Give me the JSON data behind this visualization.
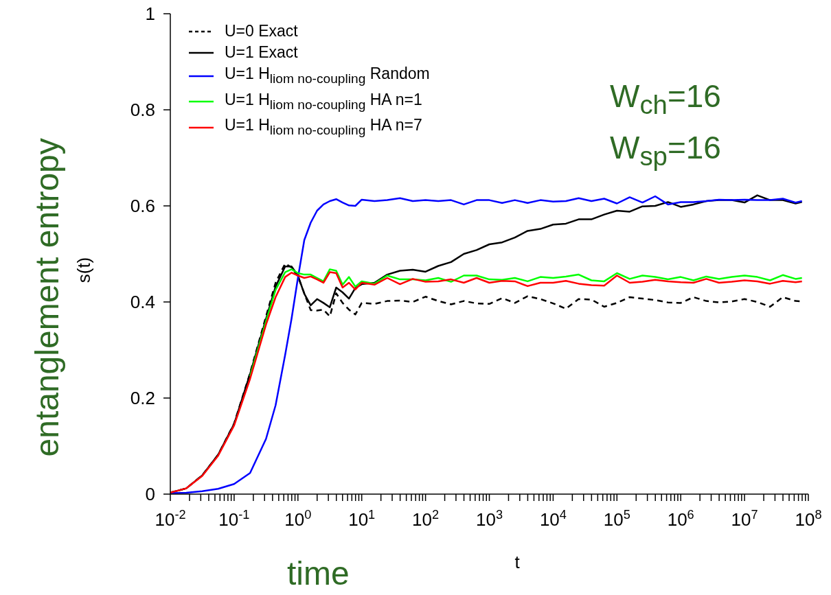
{
  "chart_data": {
    "type": "line",
    "xlabel": "t",
    "ylabel": "s(t)",
    "log": "x",
    "xlim": [
      0.01,
      100000000.0
    ],
    "ylim": [
      0,
      1
    ],
    "xticks": [
      {
        "value": 0.01,
        "label": "10$^{-2}$"
      },
      {
        "value": 0.1,
        "label": "10$^{-1}$"
      },
      {
        "value": 1,
        "label": "10$^{0}$"
      },
      {
        "value": 10,
        "label": "10$^{1}$"
      },
      {
        "value": 100,
        "label": "10$^{2}$"
      },
      {
        "value": 1000,
        "label": "10$^{3}$"
      },
      {
        "value": 10000.0,
        "label": "10$^{4}$"
      },
      {
        "value": 100000.0,
        "label": "10$^{5}$"
      },
      {
        "value": 1000000.0,
        "label": "10$^{6}$"
      },
      {
        "value": 10000000.0,
        "label": "10$^{7}$"
      },
      {
        "value": 100000000.0,
        "label": "10$^{8}$"
      },
      {
        "value": 0.02,
        "label": null
      },
      {
        "value": 0.03,
        "label": null
      },
      {
        "value": 0.04,
        "label": null
      },
      {
        "value": 0.05,
        "label": null
      },
      {
        "value": 0.06,
        "label": null
      },
      {
        "value": 0.07,
        "label": null
      },
      {
        "value": 0.08,
        "label": null
      },
      {
        "value": 0.09,
        "label": null
      },
      {
        "value": 0.2,
        "label": null
      },
      {
        "value": 0.3,
        "label": null
      },
      {
        "value": 0.4,
        "label": null
      },
      {
        "value": 0.5,
        "label": null
      },
      {
        "value": 0.6,
        "label": null
      },
      {
        "value": 0.7,
        "label": null
      },
      {
        "value": 0.8,
        "label": null
      },
      {
        "value": 0.9,
        "label": null
      },
      {
        "value": 2,
        "label": null
      },
      {
        "value": 3,
        "label": null
      },
      {
        "value": 4,
        "label": null
      },
      {
        "value": 5,
        "label": null
      },
      {
        "value": 6,
        "label": null
      },
      {
        "value": 7,
        "label": null
      },
      {
        "value": 8,
        "label": null
      },
      {
        "value": 9,
        "label": null
      },
      {
        "value": 20,
        "label": null
      },
      {
        "value": 30,
        "label": null
      },
      {
        "value": 40,
        "label": null
      },
      {
        "value": 50,
        "label": null
      },
      {
        "value": 60,
        "label": null
      },
      {
        "value": 70,
        "label": null
      },
      {
        "value": 80,
        "label": null
      },
      {
        "value": 90,
        "label": null
      },
      {
        "value": 200,
        "label": null
      },
      {
        "value": 300,
        "label": null
      },
      {
        "value": 400,
        "label": null
      },
      {
        "value": 500,
        "label": null
      },
      {
        "value": 600,
        "label": null
      },
      {
        "value": 700,
        "label": null
      },
      {
        "value": 800,
        "label": null
      },
      {
        "value": 900,
        "label": null
      },
      {
        "value": 2000.0,
        "label": null
      },
      {
        "value": 3000.0,
        "label": null
      },
      {
        "value": 4000.0,
        "label": null
      },
      {
        "value": 5000.0,
        "label": null
      },
      {
        "value": 6000.0,
        "label": null
      },
      {
        "value": 7000.0,
        "label": null
      },
      {
        "value": 8000.0,
        "label": null
      },
      {
        "value": 9000.0,
        "label": null
      },
      {
        "value": 20000.0,
        "label": null
      },
      {
        "value": 30000.0,
        "label": null
      },
      {
        "value": 40000.0,
        "label": null
      },
      {
        "value": 50000.0,
        "label": null
      },
      {
        "value": 60000.0,
        "label": null
      },
      {
        "value": 70000.0,
        "label": null
      },
      {
        "value": 80000.0,
        "label": null
      },
      {
        "value": 90000.0,
        "label": null
      },
      {
        "value": 200000.0,
        "label": null
      },
      {
        "value": 300000.0,
        "label": null
      },
      {
        "value": 400000.0,
        "label": null
      },
      {
        "value": 500000.0,
        "label": null
      },
      {
        "value": 600000.0,
        "label": null
      },
      {
        "value": 700000.0,
        "label": null
      },
      {
        "value": 800000.0,
        "label": null
      },
      {
        "value": 900000.0,
        "label": null
      },
      {
        "value": 2000000.0,
        "label": null
      },
      {
        "value": 3000000.0,
        "label": null
      },
      {
        "value": 4000000.0,
        "label": null
      },
      {
        "value": 5000000.0,
        "label": null
      },
      {
        "value": 6000000.0,
        "label": null
      },
      {
        "value": 7000000.0,
        "label": null
      },
      {
        "value": 8000000.0,
        "label": null
      },
      {
        "value": 9000000.0,
        "label": null
      },
      {
        "value": 20000000.0,
        "label": null
      },
      {
        "value": 30000000.0,
        "label": null
      },
      {
        "value": 40000000.0,
        "label": null
      },
      {
        "value": 50000000.0,
        "label": null
      },
      {
        "value": 60000000.0,
        "label": null
      },
      {
        "value": 70000000.0,
        "label": null
      },
      {
        "value": 80000000.0,
        "label": null
      },
      {
        "value": 90000000.0,
        "label": null
      }
    ],
    "yticks": [
      0,
      0.2,
      0.4,
      0.6,
      0.8,
      1
    ],
    "legend": "top left",
    "grid": false,
    "annotations": [
      "W$_{ch}$=16",
      "W$_{sp}$=16",
      "entanglement entropy",
      "time"
    ],
    "x": [
      0.01,
      0.01778,
      0.03162,
      0.05623,
      0.1,
      0.1778,
      0.3162,
      0.4467,
      0.631,
      0.7943,
      1,
      1.259,
      1.585,
      1.995,
      2.512,
      3.162,
      3.981,
      5.012,
      6.31,
      7.943,
      10,
      15.85,
      25.12,
      39.81,
      63.1,
      100,
      158.5,
      251.2,
      398.1,
      631,
      1000,
      1585,
      2512,
      3981,
      6310,
      10000.0,
      15850.0,
      25120.0,
      39810.0,
      63100.0,
      100000.0,
      158500.0,
      251200.0,
      398100.0,
      631000.0,
      1000000.0,
      1585000.0,
      2512000.0,
      3981000.0,
      6310000.0,
      10000000.0,
      15850000.0,
      25120000.0,
      39810000.0,
      63100000.0,
      79430000.0
    ],
    "series": [
      {
        "name": "U=0 Exact",
        "color": "#000000",
        "line_style": "dashed",
        "values": [
          0.003,
          0.012,
          0.039,
          0.082,
          0.147,
          0.252,
          0.37,
          0.44,
          0.48,
          0.472,
          0.453,
          0.418,
          0.383,
          0.382,
          0.384,
          0.37,
          0.418,
          0.398,
          0.384,
          0.374,
          0.398,
          0.396,
          0.402,
          0.403,
          0.4,
          0.411,
          0.402,
          0.395,
          0.402,
          0.397,
          0.396,
          0.408,
          0.398,
          0.412,
          0.406,
          0.397,
          0.386,
          0.406,
          0.405,
          0.39,
          0.398,
          0.41,
          0.407,
          0.404,
          0.399,
          0.398,
          0.41,
          0.402,
          0.399,
          0.401,
          0.406,
          0.4,
          0.39,
          0.41,
          0.402,
          0.401
        ]
      },
      {
        "name": "U=1 Exact",
        "color": "#000000",
        "line_style": "solid",
        "values": [
          0.003,
          0.012,
          0.039,
          0.082,
          0.146,
          0.25,
          0.365,
          0.432,
          0.474,
          0.474,
          0.455,
          0.417,
          0.393,
          0.406,
          0.398,
          0.389,
          0.43,
          0.42,
          0.407,
          0.429,
          0.437,
          0.44,
          0.457,
          0.465,
          0.467,
          0.463,
          0.475,
          0.483,
          0.5,
          0.508,
          0.52,
          0.524,
          0.534,
          0.548,
          0.552,
          0.561,
          0.563,
          0.572,
          0.572,
          0.582,
          0.59,
          0.588,
          0.599,
          0.6,
          0.608,
          0.598,
          0.603,
          0.61,
          0.612,
          0.612,
          0.607,
          0.622,
          0.612,
          0.612,
          0.605,
          0.608
        ]
      },
      {
        "name": "U=1 H$_{liom no-coupling}$ Random",
        "color": "#0000ff",
        "line_style": "solid",
        "values": [
          0.002,
          0.003,
          0.006,
          0.011,
          0.021,
          0.044,
          0.115,
          0.185,
          0.29,
          0.365,
          0.45,
          0.529,
          0.565,
          0.59,
          0.603,
          0.61,
          0.614,
          0.607,
          0.601,
          0.6,
          0.613,
          0.61,
          0.612,
          0.616,
          0.61,
          0.612,
          0.61,
          0.612,
          0.603,
          0.612,
          0.612,
          0.606,
          0.612,
          0.606,
          0.612,
          0.609,
          0.61,
          0.616,
          0.61,
          0.615,
          0.605,
          0.618,
          0.607,
          0.62,
          0.603,
          0.608,
          0.608,
          0.61,
          0.613,
          0.612,
          0.613,
          0.612,
          0.612,
          0.615,
          0.607,
          0.61
        ]
      },
      {
        "name": "U=1 H$_{liom no-coupling}$ HA n=1",
        "color": "#00ff00",
        "line_style": "solid",
        "values": [
          null,
          null,
          null,
          null,
          null,
          0.245,
          0.36,
          0.425,
          0.462,
          0.468,
          0.46,
          0.457,
          0.457,
          0.45,
          0.443,
          0.468,
          0.465,
          0.436,
          0.452,
          0.432,
          0.443,
          0.438,
          0.455,
          0.447,
          0.447,
          0.445,
          0.45,
          0.442,
          0.455,
          0.455,
          0.447,
          0.446,
          0.45,
          0.443,
          0.452,
          0.45,
          0.453,
          0.457,
          0.445,
          0.443,
          0.46,
          0.448,
          0.455,
          0.452,
          0.447,
          0.452,
          0.445,
          0.453,
          0.448,
          0.452,
          0.455,
          0.452,
          0.445,
          0.456,
          0.448,
          0.45
        ]
      },
      {
        "name": "U=1 H$_{liom no-coupling}$ HA n=7",
        "color": "#ff0000",
        "line_style": "solid",
        "values": [
          0.003,
          0.012,
          0.038,
          0.08,
          0.143,
          0.24,
          0.353,
          0.41,
          0.452,
          0.461,
          0.455,
          0.45,
          0.453,
          0.447,
          0.44,
          0.462,
          0.46,
          0.43,
          0.44,
          0.426,
          0.44,
          0.436,
          0.45,
          0.437,
          0.448,
          0.442,
          0.443,
          0.447,
          0.44,
          0.45,
          0.44,
          0.444,
          0.443,
          0.433,
          0.44,
          0.44,
          0.444,
          0.438,
          0.435,
          0.434,
          0.455,
          0.44,
          0.442,
          0.446,
          0.443,
          0.441,
          0.44,
          0.448,
          0.44,
          0.442,
          0.445,
          0.443,
          0.438,
          0.444,
          0.441,
          0.443
        ]
      }
    ]
  }
}
